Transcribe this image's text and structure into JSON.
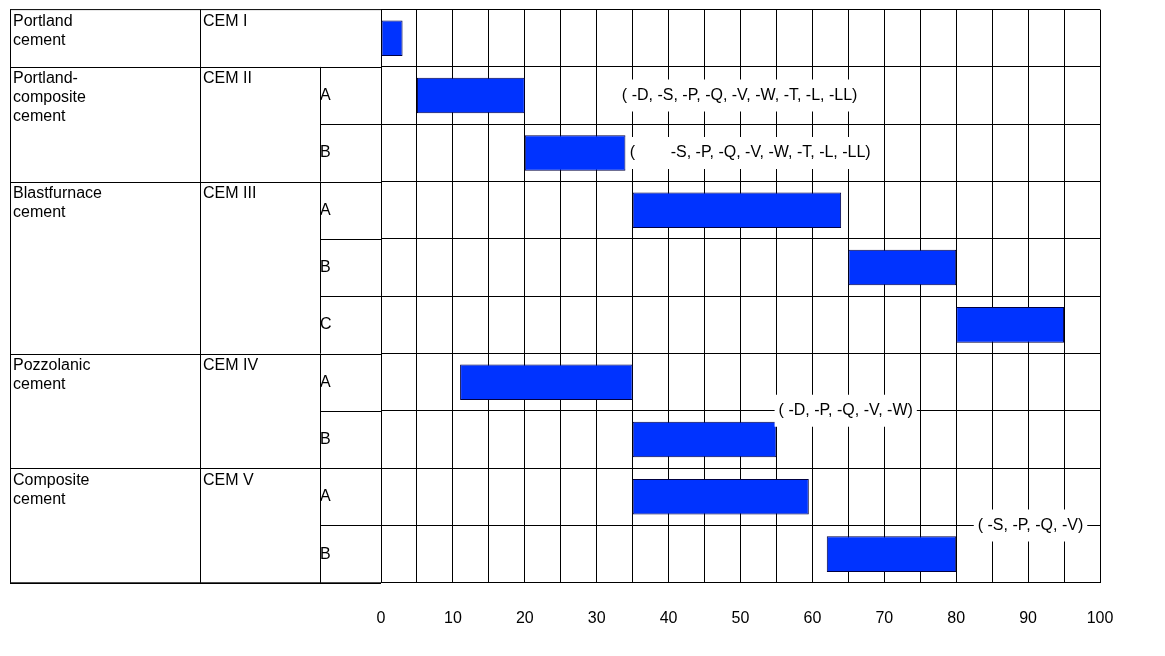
{
  "chart_data": {
    "type": "bar",
    "orientation": "horizontal",
    "categories": [
      null,
      "A",
      "B",
      "A",
      "B",
      "C",
      "A",
      "B",
      "A",
      "B"
    ],
    "base": [
      0,
      5,
      20,
      35,
      65,
      80,
      11,
      35,
      35,
      62
    ],
    "values": [
      3,
      15,
      14,
      29,
      15,
      15,
      24,
      20,
      24.5,
      18
    ],
    "color": "#0033ff",
    "xlim": [
      0,
      100
    ],
    "xticks": [
      0,
      {
        "value": 5,
        "label": null
      },
      10,
      {
        "value": 15,
        "label": null
      },
      20,
      {
        "value": 25,
        "label": null
      },
      30,
      {
        "value": 35,
        "label": null
      },
      40,
      {
        "value": 45,
        "label": null
      },
      50,
      {
        "value": 55,
        "label": null
      },
      60,
      {
        "value": 65,
        "label": null
      },
      70,
      {
        "value": 75,
        "label": null
      },
      80,
      {
        "value": 85,
        "label": null
      },
      90,
      {
        "value": 95,
        "label": null
      },
      100
    ],
    "grid": true,
    "legend": false,
    "annotations": [
      "Portland cement",
      "Portland-composite cement",
      "Blastfurnace cement",
      "Pozzolanic cement",
      "Composite cement",
      "CEM I",
      "CEM II",
      "CEM III",
      "CEM IV",
      "CEM V",
      "( -D, -S, -P, -Q, -V, -W, -T, -L, -LL)",
      "(        -S, -P, -Q, -V, -W, -T, -L, -LL)",
      "( -D, -P, -Q, -V, -W)",
      "( -S, -P, -Q, -V)"
    ]
  }
}
